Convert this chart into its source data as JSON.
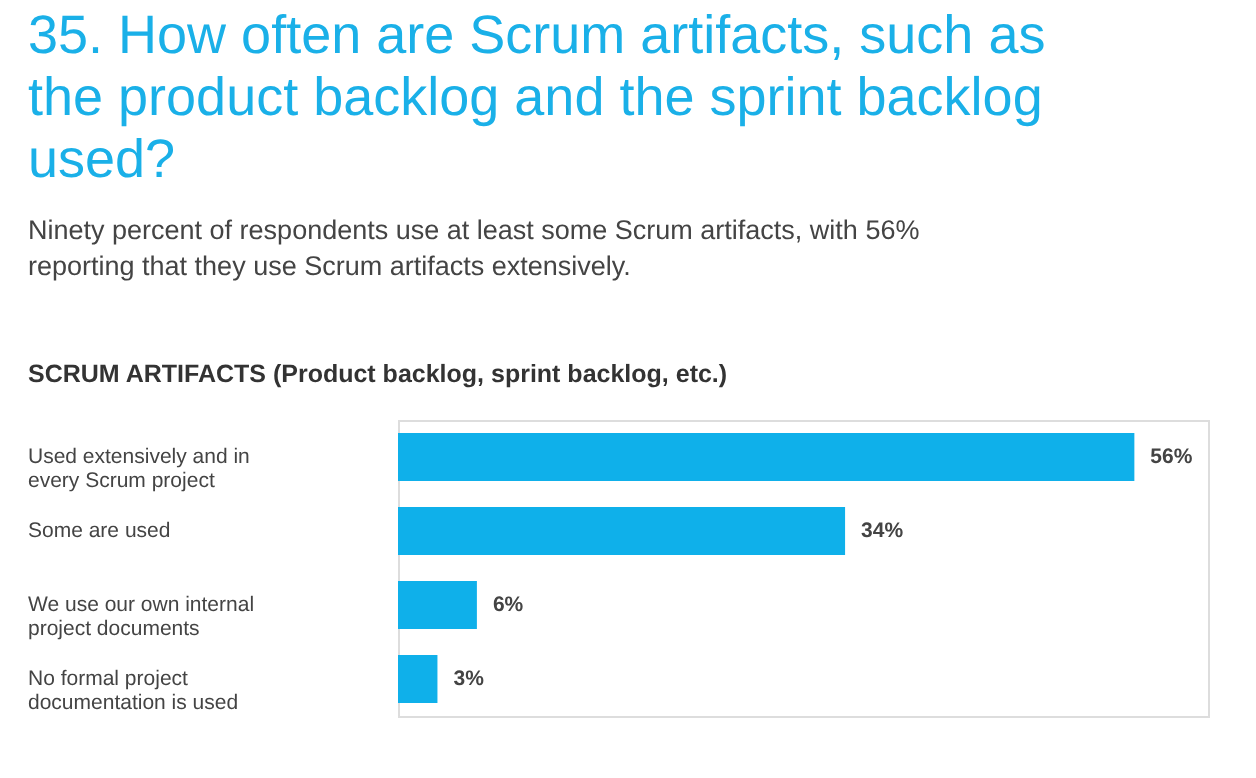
{
  "chart_data": {
    "type": "bar",
    "orientation": "horizontal",
    "title": "35. How often are Scrum artifacts, such as the product backlog and the sprint backlog used?",
    "subtitle": "Ninety percent of respondents use at least some Scrum artifacts, with 56% reporting that they use Scrum artifacts extensively.",
    "annotations": [
      "SCRUM ARTIFACTS (Product backlog, sprint backlog, etc.)"
    ],
    "categories": [
      "Used extensively and in every Scrum project",
      "Some are used",
      "We use our own internal project documents",
      "No formal project documentation is used"
    ],
    "values": [
      56,
      34,
      6,
      3
    ],
    "value_labels": [
      "56%",
      "34%",
      "6%",
      "3%"
    ],
    "color": "#0fb0ea"
  }
}
